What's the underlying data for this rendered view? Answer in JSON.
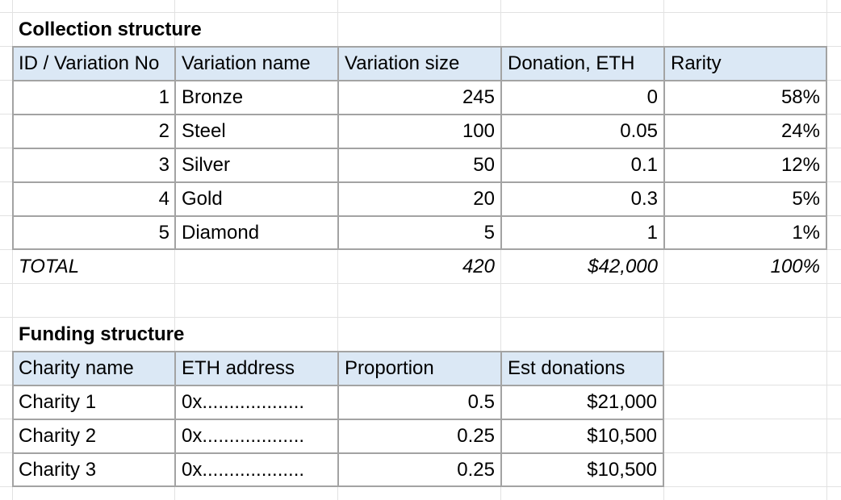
{
  "collection": {
    "title": "Collection structure",
    "headers": [
      "ID / Variation No",
      "Variation name",
      "Variation size",
      "Donation, ETH",
      "Rarity"
    ],
    "rows": [
      [
        "1",
        "Bronze",
        "245",
        "0",
        "58%"
      ],
      [
        "2",
        "Steel",
        "100",
        "0.05",
        "24%"
      ],
      [
        "3",
        "Silver",
        "50",
        "0.1",
        "12%"
      ],
      [
        "4",
        "Gold",
        "20",
        "0.3",
        "5%"
      ],
      [
        "5",
        "Diamond",
        "5",
        "1",
        "1%"
      ]
    ],
    "total": {
      "label": "TOTAL",
      "size": "420",
      "donation": "$42,000",
      "rarity": "100%"
    }
  },
  "funding": {
    "title": "Funding structure",
    "headers": [
      "Charity name",
      "ETH address",
      "Proportion",
      "Est donations"
    ],
    "rows": [
      [
        "Charity 1",
        "0x...................",
        "0.5",
        "$21,000"
      ],
      [
        "Charity 2",
        "0x...................",
        "0.25",
        "$10,500"
      ],
      [
        "Charity 3",
        "0x...................",
        "0.25",
        "$10,500"
      ]
    ]
  },
  "colors": {
    "header_fill": "#dbe8f5",
    "table_border": "#a3a3a3",
    "gridline": "#e2e2e2"
  }
}
